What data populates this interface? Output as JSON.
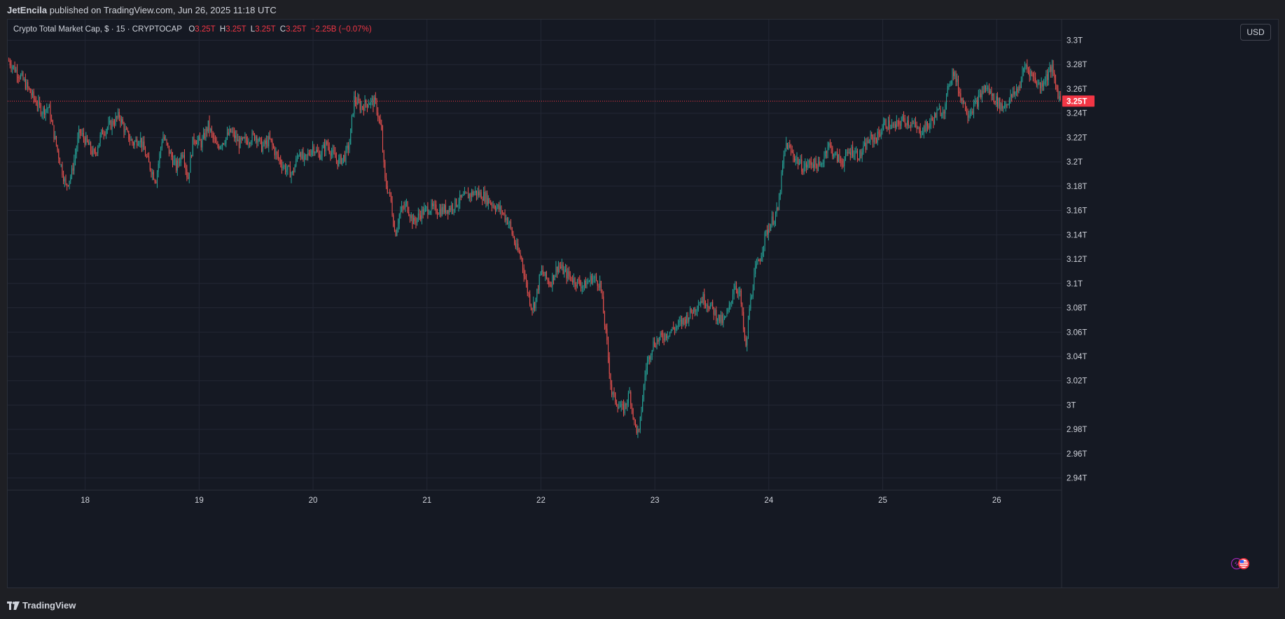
{
  "header": {
    "author": "JetEncila",
    "published_text": "published on TradingView.com, Jun 26, 2025 11:18 UTC"
  },
  "legend": {
    "symbol_text": "Crypto Total Market Cap, $ · 15 · CRYPTOCAP",
    "o_label": "O",
    "o_value": "3.25T",
    "h_label": "H",
    "h_value": "3.25T",
    "l_label": "L",
    "l_value": "3.25T",
    "c_label": "C",
    "c_value": "3.25T",
    "change": "−2.25B (−0.07%)"
  },
  "currency_button": "USD",
  "footer": {
    "brand": "TradingView"
  },
  "colors": {
    "up": "#26a69a",
    "down": "#ef5350",
    "last_price": "#f23645",
    "background": "#151923",
    "grid": "#232734"
  },
  "chart_data": {
    "type": "candlestick",
    "interval": "15",
    "x_axis_labels": [
      "18",
      "19",
      "20",
      "21",
      "22",
      "23",
      "24",
      "25",
      "26"
    ],
    "y_axis_labels": [
      "3.3T",
      "3.28T",
      "3.26T",
      "3.24T",
      "3.22T",
      "3.2T",
      "3.18T",
      "3.16T",
      "3.14T",
      "3.12T",
      "3.1T",
      "3.08T",
      "3.06T",
      "3.04T",
      "3.02T",
      "3T",
      "2.98T",
      "2.96T",
      "2.94T"
    ],
    "ylim": [
      2.93,
      3.317
    ],
    "xlim": [
      17.32,
      26.57
    ],
    "last_price": 3.25,
    "last_price_label": "3.25T",
    "grid": true,
    "price_path": [
      [
        17.33,
        3.283
      ],
      [
        17.45,
        3.268
      ],
      [
        17.55,
        3.252
      ],
      [
        17.62,
        3.242
      ],
      [
        17.68,
        3.245
      ],
      [
        17.72,
        3.225
      ],
      [
        17.78,
        3.2
      ],
      [
        17.83,
        3.18
      ],
      [
        17.88,
        3.19
      ],
      [
        17.95,
        3.225
      ],
      [
        18.02,
        3.215
      ],
      [
        18.08,
        3.205
      ],
      [
        18.15,
        3.225
      ],
      [
        18.22,
        3.23
      ],
      [
        18.3,
        3.238
      ],
      [
        18.35,
        3.225
      ],
      [
        18.42,
        3.215
      ],
      [
        18.48,
        3.22
      ],
      [
        18.55,
        3.2
      ],
      [
        18.62,
        3.185
      ],
      [
        18.68,
        3.222
      ],
      [
        18.73,
        3.21
      ],
      [
        18.8,
        3.195
      ],
      [
        18.86,
        3.21
      ],
      [
        18.9,
        3.185
      ],
      [
        18.95,
        3.22
      ],
      [
        19.02,
        3.215
      ],
      [
        19.08,
        3.23
      ],
      [
        19.15,
        3.212
      ],
      [
        19.22,
        3.218
      ],
      [
        19.28,
        3.225
      ],
      [
        19.35,
        3.215
      ],
      [
        19.42,
        3.218
      ],
      [
        19.5,
        3.222
      ],
      [
        19.55,
        3.212
      ],
      [
        19.62,
        3.218
      ],
      [
        19.68,
        3.205
      ],
      [
        19.75,
        3.195
      ],
      [
        19.82,
        3.19
      ],
      [
        19.88,
        3.21
      ],
      [
        19.92,
        3.2
      ],
      [
        20.0,
        3.213
      ],
      [
        20.05,
        3.205
      ],
      [
        20.12,
        3.215
      ],
      [
        20.18,
        3.205
      ],
      [
        20.22,
        3.2
      ],
      [
        20.28,
        3.205
      ],
      [
        20.32,
        3.215
      ],
      [
        20.36,
        3.252
      ],
      [
        20.42,
        3.245
      ],
      [
        20.5,
        3.25
      ],
      [
        20.55,
        3.248
      ],
      [
        20.6,
        3.225
      ],
      [
        20.63,
        3.185
      ],
      [
        20.68,
        3.17
      ],
      [
        20.72,
        3.14
      ],
      [
        20.76,
        3.158
      ],
      [
        20.82,
        3.165
      ],
      [
        20.88,
        3.15
      ],
      [
        20.95,
        3.158
      ],
      [
        21.02,
        3.162
      ],
      [
        21.12,
        3.16
      ],
      [
        21.2,
        3.162
      ],
      [
        21.28,
        3.168
      ],
      [
        21.35,
        3.172
      ],
      [
        21.42,
        3.175
      ],
      [
        21.5,
        3.172
      ],
      [
        21.58,
        3.165
      ],
      [
        21.65,
        3.16
      ],
      [
        21.72,
        3.15
      ],
      [
        21.78,
        3.13
      ],
      [
        21.83,
        3.12
      ],
      [
        21.88,
        3.095
      ],
      [
        21.92,
        3.08
      ],
      [
        21.95,
        3.085
      ],
      [
        22.0,
        3.11
      ],
      [
        22.08,
        3.1
      ],
      [
        22.15,
        3.115
      ],
      [
        22.22,
        3.108
      ],
      [
        22.3,
        3.102
      ],
      [
        22.38,
        3.098
      ],
      [
        22.45,
        3.105
      ],
      [
        22.52,
        3.1
      ],
      [
        22.58,
        3.05
      ],
      [
        22.62,
        3.01
      ],
      [
        22.68,
        3.0
      ],
      [
        22.72,
        2.995
      ],
      [
        22.78,
        3.01
      ],
      [
        22.82,
        2.985
      ],
      [
        22.86,
        2.975
      ],
      [
        22.88,
        2.995
      ],
      [
        22.92,
        3.03
      ],
      [
        22.98,
        3.05
      ],
      [
        23.05,
        3.055
      ],
      [
        23.12,
        3.06
      ],
      [
        23.2,
        3.065
      ],
      [
        23.28,
        3.072
      ],
      [
        23.35,
        3.08
      ],
      [
        23.42,
        3.088
      ],
      [
        23.5,
        3.08
      ],
      [
        23.55,
        3.072
      ],
      [
        23.6,
        3.068
      ],
      [
        23.65,
        3.078
      ],
      [
        23.7,
        3.1
      ],
      [
        23.75,
        3.09
      ],
      [
        23.78,
        3.06
      ],
      [
        23.8,
        3.045
      ],
      [
        23.83,
        3.08
      ],
      [
        23.88,
        3.11
      ],
      [
        23.92,
        3.12
      ],
      [
        23.97,
        3.14
      ],
      [
        24.02,
        3.15
      ],
      [
        24.08,
        3.16
      ],
      [
        24.12,
        3.195
      ],
      [
        24.15,
        3.215
      ],
      [
        24.22,
        3.205
      ],
      [
        24.3,
        3.195
      ],
      [
        24.38,
        3.2
      ],
      [
        24.45,
        3.195
      ],
      [
        24.52,
        3.215
      ],
      [
        24.58,
        3.205
      ],
      [
        24.65,
        3.2
      ],
      [
        24.72,
        3.21
      ],
      [
        24.8,
        3.205
      ],
      [
        24.88,
        3.218
      ],
      [
        24.95,
        3.22
      ],
      [
        25.02,
        3.232
      ],
      [
        25.1,
        3.228
      ],
      [
        25.18,
        3.235
      ],
      [
        25.25,
        3.232
      ],
      [
        25.32,
        3.225
      ],
      [
        25.4,
        3.23
      ],
      [
        25.48,
        3.24
      ],
      [
        25.55,
        3.245
      ],
      [
        25.58,
        3.265
      ],
      [
        25.62,
        3.275
      ],
      [
        25.68,
        3.255
      ],
      [
        25.75,
        3.24
      ],
      [
        25.82,
        3.248
      ],
      [
        25.9,
        3.262
      ],
      [
        25.98,
        3.252
      ],
      [
        26.05,
        3.245
      ],
      [
        26.12,
        3.252
      ],
      [
        26.2,
        3.262
      ],
      [
        26.25,
        3.28
      ],
      [
        26.32,
        3.27
      ],
      [
        26.38,
        3.262
      ],
      [
        26.45,
        3.272
      ],
      [
        26.48,
        3.278
      ],
      [
        26.52,
        3.262
      ],
      [
        26.56,
        3.25
      ]
    ]
  }
}
